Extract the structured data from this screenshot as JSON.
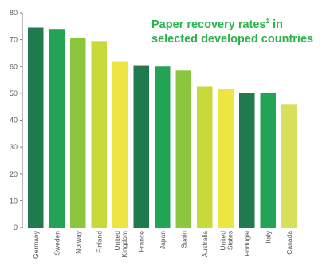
{
  "chart_data": {
    "type": "bar",
    "title_lines": [
      "Paper recovery rates",
      "selected developed countries"
    ],
    "title_superscript": "1",
    "title_suffix": " in",
    "xlabel": "",
    "ylabel": "",
    "ylim": [
      0,
      80
    ],
    "yticks": [
      "0",
      "10",
      "20",
      "30",
      "40",
      "50",
      "60",
      "70",
      "80"
    ],
    "grid": false,
    "categories": [
      [
        "Germany"
      ],
      [
        "Sweden"
      ],
      [
        "Norway"
      ],
      [
        "Finland"
      ],
      [
        "United",
        "Kingdom"
      ],
      [
        "France"
      ],
      [
        "Japan"
      ],
      [
        "Spain"
      ],
      [
        "Australia"
      ],
      [
        "United",
        "States"
      ],
      [
        "Portugal"
      ],
      [
        "Italy"
      ],
      [
        "Canada"
      ]
    ],
    "values": [
      74.5,
      74,
      70.5,
      69.5,
      62,
      60.5,
      60,
      58.5,
      52.5,
      51.5,
      50,
      50,
      46
    ],
    "bar_colors": [
      "#1f7a4d",
      "#22a355",
      "#8cc63f",
      "#c8d93a",
      "#ece542",
      "#1f7a4d",
      "#22a355",
      "#8cc63f",
      "#c8d93a",
      "#ece542",
      "#1f7a4d",
      "#22a355",
      "#d6e05a"
    ]
  },
  "colors": {
    "title": "#2ab34b",
    "axis": "#7a7a7a"
  }
}
